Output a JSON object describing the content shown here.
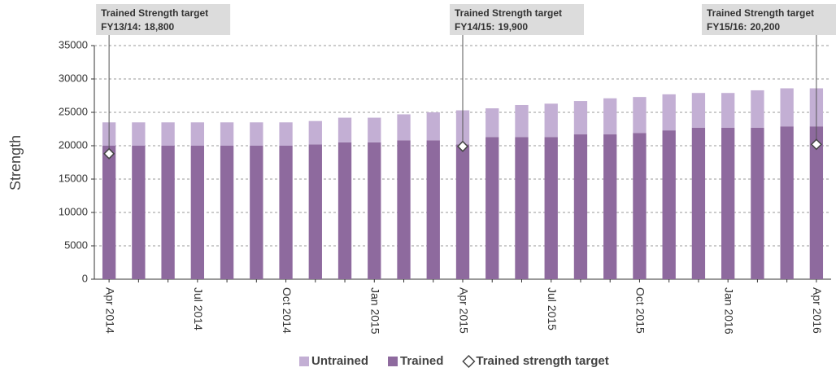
{
  "chart_data": {
    "type": "bar",
    "stacked": true,
    "y_label": "Strength",
    "categories": [
      "Apr 2014",
      null,
      null,
      "Jul 2014",
      null,
      null,
      "Oct 2014",
      null,
      null,
      "Jan 2015",
      null,
      null,
      "Apr 2015",
      null,
      null,
      "Jul 2015",
      null,
      null,
      "Oct 2015",
      null,
      null,
      "Jan 2016",
      null,
      null,
      "Apr 2016"
    ],
    "series": [
      {
        "name": "Trained",
        "color": "#8e6a9e",
        "values": [
          20000,
          20000,
          20000,
          20000,
          20000,
          20000,
          20000,
          20200,
          20500,
          20500,
          20800,
          20800,
          20200,
          21300,
          21300,
          21300,
          21700,
          21700,
          21900,
          22300,
          22700,
          22700,
          22700,
          22900,
          22900
        ]
      },
      {
        "name": "Untrained",
        "color": "#c3afd4",
        "values": [
          3500,
          3500,
          3500,
          3500,
          3500,
          3500,
          3500,
          3500,
          3700,
          3700,
          3900,
          4200,
          5100,
          4300,
          4800,
          5000,
          5000,
          5400,
          5400,
          5400,
          5200,
          5200,
          5600,
          5700,
          5700
        ]
      },
      {
        "name": "Trained strength target",
        "type": "scatter",
        "color": "#ffffff",
        "values": [
          18800,
          null,
          null,
          null,
          null,
          null,
          null,
          null,
          null,
          null,
          null,
          null,
          19900,
          null,
          null,
          null,
          null,
          null,
          null,
          null,
          null,
          null,
          null,
          null,
          20200
        ]
      }
    ],
    "annotations": [
      {
        "title": "Trained Strength target",
        "period": "FY13/14:",
        "value_label": "18,800"
      },
      {
        "title": "Trained Strength target",
        "period": "FY14/15:",
        "value_label": "19,900"
      },
      {
        "title": "Trained Strength target",
        "period": "FY15/16:",
        "value_label": "20,200"
      }
    ],
    "legend_order": [
      1,
      0,
      2
    ],
    "legend": "bottom",
    "ylim": [
      0,
      35000
    ],
    "yticks": [
      0,
      5000,
      10000,
      15000,
      20000,
      25000,
      30000,
      35000
    ],
    "grid": true
  }
}
